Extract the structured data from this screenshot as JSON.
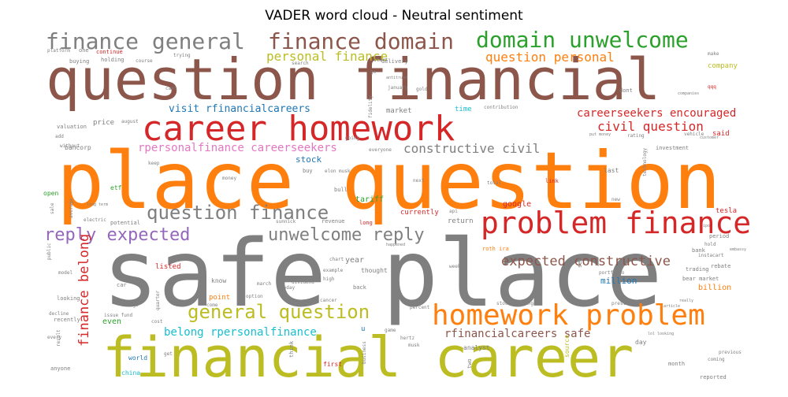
{
  "chart_data": {
    "type": "wordcloud",
    "title": "VADER word cloud - Neutral sentiment",
    "words": [
      {
        "text": "safe place",
        "color": "#7f7f7f"
      },
      {
        "text": "place question",
        "color": "#ff7f0e"
      },
      {
        "text": "question financial",
        "color": "#8c564b"
      },
      {
        "text": "financial career",
        "color": "#bcbd22"
      },
      {
        "text": "career homework",
        "color": "#d62728"
      },
      {
        "text": "problem finance",
        "color": "#d62728"
      },
      {
        "text": "homework problem",
        "color": "#ff7f0e"
      },
      {
        "text": "finance general",
        "color": "#7f7f7f"
      },
      {
        "text": "finance domain",
        "color": "#8c564b"
      },
      {
        "text": "domain unwelcome",
        "color": "#2ca02c"
      },
      {
        "text": "question finance",
        "color": "#7f7f7f"
      },
      {
        "text": "general question",
        "color": "#bcbd22"
      },
      {
        "text": "unwelcome reply",
        "color": "#7f7f7f"
      },
      {
        "text": "reply expected",
        "color": "#9467bd"
      },
      {
        "text": "finance belong",
        "color": "#d62728"
      },
      {
        "text": "expected constructive",
        "color": "#8c564b"
      },
      {
        "text": "personal finance",
        "color": "#bcbd22"
      },
      {
        "text": "question personal",
        "color": "#ff7f0e"
      },
      {
        "text": "civil question",
        "color": "#d62728"
      },
      {
        "text": "constructive civil",
        "color": "#7f7f7f"
      },
      {
        "text": "rpersonalfinance careerseekers",
        "color": "#e377c2"
      },
      {
        "text": "careerseekers encouraged",
        "color": "#d62728"
      },
      {
        "text": "visit rfinancialcareers",
        "color": "#1f77b4"
      },
      {
        "text": "belong rpersonalfinance",
        "color": "#17becf"
      },
      {
        "text": "rfinancialcareers safe",
        "color": "#8c564b"
      },
      {
        "text": "stock",
        "color": "#1f77b4"
      },
      {
        "text": "market",
        "color": "#7f7f7f"
      },
      {
        "text": "time",
        "color": "#17becf"
      },
      {
        "text": "million",
        "color": "#1f77b4"
      },
      {
        "text": "billion",
        "color": "#ff7f0e"
      },
      {
        "text": "tesla",
        "color": "#d62728"
      },
      {
        "text": "company",
        "color": "#bcbd22"
      },
      {
        "text": "said",
        "color": "#d62728"
      },
      {
        "text": "year",
        "color": "#7f7f7f"
      },
      {
        "text": "tariff",
        "color": "#2ca02c"
      },
      {
        "text": "google",
        "color": "#d62728"
      },
      {
        "text": "currently",
        "color": "#d62728"
      },
      {
        "text": "return",
        "color": "#7f7f7f"
      },
      {
        "text": "roth ira",
        "color": "#ff7f0e"
      },
      {
        "text": "thought",
        "color": "#7f7f7f"
      },
      {
        "text": "listed",
        "color": "#d62728"
      },
      {
        "text": "know",
        "color": "#7f7f7f"
      },
      {
        "text": "point",
        "color": "#ff7f0e"
      },
      {
        "text": "even",
        "color": "#2ca02c"
      },
      {
        "text": "price",
        "color": "#7f7f7f"
      },
      {
        "text": "valuation",
        "color": "#7f7f7f"
      },
      {
        "text": "bancorp",
        "color": "#7f7f7f"
      },
      {
        "text": "etf",
        "color": "#2ca02c"
      },
      {
        "text": "open",
        "color": "#2ca02c"
      },
      {
        "text": "investment",
        "color": "#7f7f7f"
      },
      {
        "text": "analyst",
        "color": "#7f7f7f"
      },
      {
        "text": "source",
        "color": "#bcbd22"
      },
      {
        "text": "month",
        "color": "#7f7f7f"
      },
      {
        "text": "first",
        "color": "#d62728"
      },
      {
        "text": "world",
        "color": "#1f77b4"
      },
      {
        "text": "china",
        "color": "#17becf"
      },
      {
        "text": "anyone",
        "color": "#7f7f7f"
      },
      {
        "text": "reported",
        "color": "#7f7f7f"
      },
      {
        "text": "day",
        "color": "#7f7f7f"
      },
      {
        "text": "trading",
        "color": "#7f7f7f"
      },
      {
        "text": "rebate",
        "color": "#7f7f7f"
      },
      {
        "text": "bank",
        "color": "#7f7f7f"
      },
      {
        "text": "bear market",
        "color": "#7f7f7f"
      },
      {
        "text": "period",
        "color": "#7f7f7f"
      },
      {
        "text": "last",
        "color": "#7f7f7f"
      },
      {
        "text": "link",
        "color": "#d62728"
      },
      {
        "text": "delivery",
        "color": "#7f7f7f"
      },
      {
        "text": "holding",
        "color": "#7f7f7f"
      },
      {
        "text": "buying",
        "color": "#7f7f7f"
      },
      {
        "text": "continue",
        "color": "#d62728"
      },
      {
        "text": "one",
        "color": "#7f7f7f"
      },
      {
        "text": "platform",
        "color": "#7f7f7f"
      },
      {
        "text": "dont",
        "color": "#7f7f7f"
      },
      {
        "text": "contribution",
        "color": "#7f7f7f"
      },
      {
        "text": "make",
        "color": "#7f7f7f"
      },
      {
        "text": "qqq",
        "color": "#d62728"
      },
      {
        "text": "revenue",
        "color": "#7f7f7f"
      },
      {
        "text": "long",
        "color": "#d62728"
      },
      {
        "text": "bull",
        "color": "#7f7f7f"
      },
      {
        "text": "buy",
        "color": "#7f7f7f"
      },
      {
        "text": "potential",
        "color": "#7f7f7f"
      },
      {
        "text": "electric",
        "color": "#7f7f7f"
      },
      {
        "text": "average",
        "color": "#7f7f7f"
      },
      {
        "text": "recently",
        "color": "#7f7f7f"
      },
      {
        "text": "looking",
        "color": "#7f7f7f"
      },
      {
        "text": "decline",
        "color": "#7f7f7f"
      },
      {
        "text": "model",
        "color": "#7f7f7f"
      },
      {
        "text": "every",
        "color": "#7f7f7f"
      },
      {
        "text": "change",
        "color": "#7f7f7f"
      },
      {
        "text": "car",
        "color": "#7f7f7f"
      },
      {
        "text": "come",
        "color": "#7f7f7f"
      },
      {
        "text": "option",
        "color": "#7f7f7f"
      },
      {
        "text": "today",
        "color": "#7f7f7f"
      },
      {
        "text": "back",
        "color": "#7f7f7f"
      },
      {
        "text": "high",
        "color": "#7f7f7f"
      },
      {
        "text": "example",
        "color": "#7f7f7f"
      },
      {
        "text": "percent",
        "color": "#7f7f7f"
      },
      {
        "text": "see",
        "color": "#7f7f7f"
      },
      {
        "text": "portfolio",
        "color": "#7f7f7f"
      },
      {
        "text": "new",
        "color": "#7f7f7f"
      },
      {
        "text": "president",
        "color": "#7f7f7f"
      },
      {
        "text": "stock exchange",
        "color": "#7f7f7f"
      },
      {
        "text": "two",
        "color": "#7f7f7f"
      },
      {
        "text": "think",
        "color": "#7f7f7f"
      },
      {
        "text": "business",
        "color": "#7f7f7f"
      },
      {
        "text": "u",
        "color": "#1f77b4"
      },
      {
        "text": "hertz",
        "color": "#7f7f7f"
      },
      {
        "text": "musk",
        "color": "#7f7f7f"
      },
      {
        "text": "start",
        "color": "#7f7f7f"
      },
      {
        "text": "vehicle",
        "color": "#7f7f7f"
      },
      {
        "text": "customer",
        "color": "#7f7f7f"
      },
      {
        "text": "rating",
        "color": "#7f7f7f"
      },
      {
        "text": "technology",
        "color": "#7f7f7f"
      },
      {
        "text": "january",
        "color": "#7f7f7f"
      },
      {
        "text": "gold",
        "color": "#7f7f7f"
      },
      {
        "text": "fidelity",
        "color": "#7f7f7f"
      },
      {
        "text": "everyone",
        "color": "#7f7f7f"
      },
      {
        "text": "going",
        "color": "#7f7f7f"
      },
      {
        "text": "money",
        "color": "#7f7f7f"
      },
      {
        "text": "keep",
        "color": "#7f7f7f"
      },
      {
        "text": "long term",
        "color": "#7f7f7f"
      },
      {
        "text": "elon musk",
        "color": "#7f7f7f"
      },
      {
        "text": "next",
        "color": "#7f7f7f"
      },
      {
        "text": "total",
        "color": "#7f7f7f"
      },
      {
        "text": "api",
        "color": "#7f7f7f"
      },
      {
        "text": "march",
        "color": "#7f7f7f"
      },
      {
        "text": "dividend",
        "color": "#7f7f7f"
      },
      {
        "text": "chart",
        "color": "#7f7f7f"
      },
      {
        "text": "week",
        "color": "#7f7f7f"
      },
      {
        "text": "instacart",
        "color": "#7f7f7f"
      },
      {
        "text": "hold",
        "color": "#7f7f7f"
      },
      {
        "text": "previous",
        "color": "#7f7f7f"
      },
      {
        "text": "coming",
        "color": "#7f7f7f"
      },
      {
        "text": "without",
        "color": "#7f7f7f"
      },
      {
        "text": "add",
        "color": "#7f7f7f"
      },
      {
        "text": "august",
        "color": "#7f7f7f"
      },
      {
        "text": "search",
        "color": "#7f7f7f"
      },
      {
        "text": "trying",
        "color": "#7f7f7f"
      },
      {
        "text": "course",
        "color": "#7f7f7f"
      },
      {
        "text": "cost",
        "color": "#7f7f7f"
      },
      {
        "text": "quarter",
        "color": "#7f7f7f"
      },
      {
        "text": "cancer",
        "color": "#7f7f7f"
      },
      {
        "text": "issue fund",
        "color": "#7f7f7f"
      },
      {
        "text": "sale",
        "color": "#7f7f7f"
      },
      {
        "text": "public",
        "color": "#7f7f7f"
      },
      {
        "text": "result",
        "color": "#7f7f7f"
      },
      {
        "text": "get",
        "color": "#7f7f7f"
      },
      {
        "text": "go",
        "color": "#7f7f7f"
      },
      {
        "text": "put money",
        "color": "#7f7f7f"
      },
      {
        "text": "article",
        "color": "#7f7f7f"
      },
      {
        "text": "really",
        "color": "#7f7f7f"
      },
      {
        "text": "happened",
        "color": "#7f7f7f"
      },
      {
        "text": "embassy",
        "color": "#7f7f7f"
      },
      {
        "text": "ipo",
        "color": "#7f7f7f"
      },
      {
        "text": "cant",
        "color": "#7f7f7f"
      },
      {
        "text": "game",
        "color": "#7f7f7f"
      },
      {
        "text": "antitrust",
        "color": "#7f7f7f"
      },
      {
        "text": "lol looking",
        "color": "#7f7f7f"
      },
      {
        "text": "companies",
        "color": "#7f7f7f"
      },
      {
        "text": "sunnick",
        "color": "#7f7f7f"
      }
    ]
  }
}
